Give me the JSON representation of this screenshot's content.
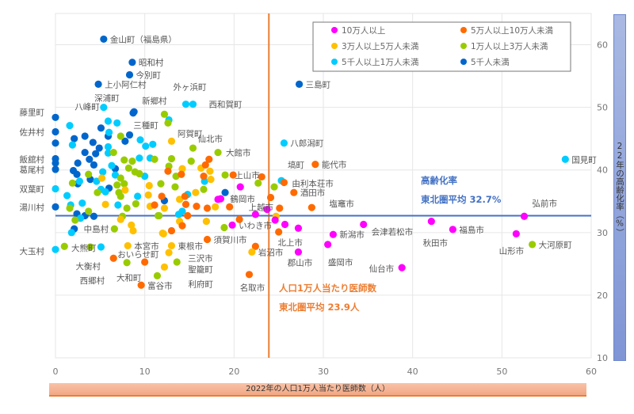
{
  "chart_data": {
    "type": "scatter",
    "xlabel": "2022年の人口1万人当たり医師数（人）",
    "ylabel": "22年の高齢化率（%）",
    "xlim": [
      0,
      60
    ],
    "ylim": [
      10,
      65
    ],
    "x_ticks": [
      "0",
      "10",
      "20",
      "30",
      "40",
      "50",
      "60"
    ],
    "y_ticks": [
      "10",
      "20",
      "30",
      "40",
      "50",
      "60"
    ],
    "grid": true,
    "legend_position": "top-right",
    "categories": [
      {
        "name": "10万人以上",
        "color": "#ff00ff"
      },
      {
        "name": "5万人以上10万人未満",
        "color": "#ff6a00"
      },
      {
        "name": "3万人以上5万人未満",
        "color": "#ffc000"
      },
      {
        "name": "1万人以上3万人未満",
        "color": "#99cc00"
      },
      {
        "name": "5千人以上1万人未満",
        "color": "#00ccff"
      },
      {
        "name": "5千人未満",
        "color": "#0066cc"
      }
    ],
    "reference_lines": {
      "aging_avg": {
        "value": 32.7,
        "axis": "y",
        "color": "#4472c4",
        "label1": "高齢化率",
        "label2": "東北圏平均 32.7%"
      },
      "doctor_avg": {
        "value": 23.9,
        "axis": "x",
        "color": "#ed7d31",
        "label1": "人口1万人当たり医師数",
        "label2": "東北圏平均 23.9人"
      }
    },
    "labeled_points": [
      {
        "name": "金山町（福島県）",
        "x": 5.4,
        "y": 60.9,
        "cat": 5
      },
      {
        "name": "昭和村",
        "x": 8.6,
        "y": 57.2,
        "cat": 5
      },
      {
        "name": "今別町",
        "x": 8.3,
        "y": 55.2,
        "cat": 5
      },
      {
        "name": "上小阿仁村",
        "x": 4.8,
        "y": 53.7,
        "cat": 5
      },
      {
        "name": "三島町",
        "x": 27.3,
        "y": 53.7,
        "cat": 5
      },
      {
        "name": "深浦町",
        "x": 5.4,
        "y": 50.0,
        "cat": 4
      },
      {
        "name": "八峰町",
        "x": 1.6,
        "y": 47.1,
        "cat": 4
      },
      {
        "name": "新郷村",
        "x": 8.8,
        "y": 49.3,
        "cat": 5
      },
      {
        "name": "外ヶ浜町",
        "x": 14.6,
        "y": 50.5,
        "cat": 4
      },
      {
        "name": "西和賀町",
        "x": 15.4,
        "y": 50.5,
        "cat": 4
      },
      {
        "name": "藤里町",
        "x": 0,
        "y": 48.4,
        "cat": 5
      },
      {
        "name": "佐井村",
        "x": 0,
        "y": 46.1,
        "cat": 5
      },
      {
        "name": "飯舘村",
        "x": 0,
        "y": 41.1,
        "cat": 5
      },
      {
        "name": "葛尾村",
        "x": 0,
        "y": 40.1,
        "cat": 5
      },
      {
        "name": "三種町",
        "x": 7.3,
        "y": 45.4,
        "cat": 3
      },
      {
        "name": "阿賀町",
        "x": 12.6,
        "y": 47.5,
        "cat": 3
      },
      {
        "name": "仙北市",
        "x": 15.4,
        "y": 43.5,
        "cat": 3
      },
      {
        "name": "大館市",
        "x": 18.2,
        "y": 42.8,
        "cat": 3
      },
      {
        "name": "上山市",
        "x": 19.9,
        "y": 39.2,
        "cat": 1
      },
      {
        "name": "八郎潟町",
        "x": 25.6,
        "y": 44.3,
        "cat": 4
      },
      {
        "name": "塙町",
        "x": 25.3,
        "y": 38.3,
        "cat": 4
      },
      {
        "name": "能代市",
        "x": 29.1,
        "y": 40.9,
        "cat": 1
      },
      {
        "name": "由利本荘市",
        "x": 25.6,
        "y": 38.0,
        "cat": 1
      },
      {
        "name": "酒田市",
        "x": 26.7,
        "y": 36.4,
        "cat": 1
      },
      {
        "name": "塩竈市",
        "x": 28.7,
        "y": 34.0,
        "cat": 1
      },
      {
        "name": "鶴岡市",
        "x": 18.5,
        "y": 35.4,
        "cat": 0
      },
      {
        "name": "上越市",
        "x": 23.7,
        "y": 33.7,
        "cat": 0
      },
      {
        "name": "いわき市",
        "x": 19.8,
        "y": 31.2,
        "cat": 0
      },
      {
        "name": "須賀川市",
        "x": 17.0,
        "y": 28.9,
        "cat": 1
      },
      {
        "name": "北上市",
        "x": 22.4,
        "y": 27.8,
        "cat": 1
      },
      {
        "name": "岩沼市",
        "x": 22.0,
        "y": 26.9,
        "cat": 2
      },
      {
        "name": "郡山市",
        "x": 27.2,
        "y": 26.9,
        "cat": 0
      },
      {
        "name": "名取市",
        "x": 21.7,
        "y": 23.3,
        "cat": 1
      },
      {
        "name": "新潟市",
        "x": 31.1,
        "y": 29.7,
        "cat": 0
      },
      {
        "name": "会津若松市",
        "x": 34.5,
        "y": 31.3,
        "cat": 0
      },
      {
        "name": "盛岡市",
        "x": 30.5,
        "y": 28.1,
        "cat": 0
      },
      {
        "name": "仙台市",
        "x": 38.8,
        "y": 24.4,
        "cat": 0
      },
      {
        "name": "秋田市",
        "x": 42.1,
        "y": 31.8,
        "cat": 0
      },
      {
        "name": "福島市",
        "x": 44.5,
        "y": 30.5,
        "cat": 0
      },
      {
        "name": "弘前市",
        "x": 52.5,
        "y": 32.6,
        "cat": 0
      },
      {
        "name": "山形市",
        "x": 51.6,
        "y": 29.8,
        "cat": 0
      },
      {
        "name": "大河原町",
        "x": 53.4,
        "y": 28.1,
        "cat": 3
      },
      {
        "name": "国見町",
        "x": 57.1,
        "y": 41.7,
        "cat": 4
      },
      {
        "name": "双葉町",
        "x": 0,
        "y": 37.0,
        "cat": 4
      },
      {
        "name": "湯川村",
        "x": 0,
        "y": 34.1,
        "cat": 5
      },
      {
        "name": "中島村",
        "x": 2.1,
        "y": 30.6,
        "cat": 5
      },
      {
        "name": "大玉村",
        "x": 0,
        "y": 27.3,
        "cat": 4
      },
      {
        "name": "大熊町",
        "x": 5.1,
        "y": 27.7,
        "cat": 4
      },
      {
        "name": "大衡村",
        "x": 1.8,
        "y": 30.0,
        "cat": 4
      },
      {
        "name": "西郷村",
        "x": 8.0,
        "y": 25.2,
        "cat": 3
      },
      {
        "name": "おいらせ町",
        "x": 6.5,
        "y": 25.9,
        "cat": 1
      },
      {
        "name": "本宮市",
        "x": 8.1,
        "y": 27.9,
        "cat": 2
      },
      {
        "name": "大和町",
        "x": 11.4,
        "y": 23.1,
        "cat": 3
      },
      {
        "name": "富谷市",
        "x": 9.6,
        "y": 21.6,
        "cat": 1
      },
      {
        "name": "東根市",
        "x": 13.0,
        "y": 27.9,
        "cat": 2
      },
      {
        "name": "三沢市",
        "x": 12.7,
        "y": 26.8,
        "cat": 2
      },
      {
        "name": "聖籠町",
        "x": 13.6,
        "y": 25.3,
        "cat": 3
      },
      {
        "name": "利府町",
        "x": 12.2,
        "y": 24.5,
        "cat": 2
      }
    ],
    "points": [
      [
        8.7,
        49.1,
        5
      ],
      [
        5.1,
        46.7,
        5
      ],
      [
        3.3,
        45.4,
        5
      ],
      [
        2.1,
        45.0,
        5
      ],
      [
        5.9,
        45.4,
        5
      ],
      [
        8.3,
        45.6,
        5
      ],
      [
        7.8,
        44.6,
        5
      ],
      [
        4.2,
        44.4,
        5
      ],
      [
        3.3,
        42.8,
        5
      ],
      [
        4.5,
        42.6,
        5
      ],
      [
        4.9,
        43.5,
        5
      ],
      [
        3.8,
        41.7,
        5
      ],
      [
        2.5,
        41.1,
        5
      ],
      [
        4.3,
        40.8,
        5
      ],
      [
        2.0,
        39.9,
        5
      ],
      [
        2.4,
        39.3,
        5
      ],
      [
        3.9,
        38.5,
        5
      ],
      [
        2.5,
        37.8,
        5
      ],
      [
        6.0,
        37.1,
        5
      ],
      [
        6.7,
        40.2,
        5
      ],
      [
        12.2,
        35.1,
        5
      ],
      [
        3.3,
        32.7,
        5
      ],
      [
        4.3,
        32.6,
        5
      ],
      [
        2.4,
        33.0,
        5
      ],
      [
        19.0,
        36.4,
        5
      ],
      [
        0,
        44.3,
        5
      ],
      [
        0,
        41.8,
        5
      ],
      [
        5.9,
        47.8,
        4
      ],
      [
        6.9,
        47.5,
        4
      ],
      [
        6.0,
        46.0,
        4
      ],
      [
        1.9,
        44.0,
        4
      ],
      [
        5.9,
        43.7,
        4
      ],
      [
        9.5,
        44.8,
        4
      ],
      [
        10.1,
        43.8,
        4
      ],
      [
        10.9,
        44.1,
        4
      ],
      [
        5.9,
        42.7,
        4
      ],
      [
        9.4,
        41.9,
        4
      ],
      [
        10.6,
        41.9,
        4
      ],
      [
        6.3,
        40.7,
        4
      ],
      [
        5.3,
        39.7,
        4
      ],
      [
        6.7,
        39.2,
        4
      ],
      [
        10.0,
        39.0,
        4
      ],
      [
        4.6,
        38.2,
        4
      ],
      [
        2.7,
        38.2,
        4
      ],
      [
        5.1,
        36.9,
        4
      ],
      [
        5.6,
        36.5,
        4
      ],
      [
        1.3,
        35.9,
        4
      ],
      [
        3.0,
        34.7,
        4
      ],
      [
        7.0,
        34.4,
        4
      ],
      [
        1.7,
        34.4,
        4
      ],
      [
        9.2,
        35.8,
        4
      ],
      [
        2.8,
        32.3,
        4
      ],
      [
        16.7,
        38.2,
        4
      ],
      [
        14.8,
        36.1,
        4
      ],
      [
        14.2,
        33.4,
        4
      ],
      [
        13.8,
        32.9,
        4
      ],
      [
        12.7,
        48.0,
        4
      ],
      [
        11.1,
        41.7,
        3
      ],
      [
        7.7,
        41.6,
        3
      ],
      [
        8.6,
        41.4,
        3
      ],
      [
        6.5,
        42.8,
        3
      ],
      [
        8.2,
        40.3,
        3
      ],
      [
        8.9,
        39.7,
        3
      ],
      [
        9.4,
        39.4,
        3
      ],
      [
        7.3,
        38.7,
        3
      ],
      [
        7.7,
        37.8,
        3
      ],
      [
        6.9,
        37.6,
        3
      ],
      [
        3.7,
        39.3,
        3
      ],
      [
        1.9,
        37.9,
        3
      ],
      [
        4.7,
        36.4,
        3
      ],
      [
        7.1,
        36.4,
        3
      ],
      [
        7.3,
        35.8,
        3
      ],
      [
        9.0,
        34.6,
        3
      ],
      [
        8.0,
        33.9,
        3
      ],
      [
        7.5,
        32.6,
        3
      ],
      [
        11.5,
        32.7,
        3
      ],
      [
        3.7,
        33.4,
        3
      ],
      [
        2.2,
        32.0,
        3
      ],
      [
        1.6,
        33.9,
        3
      ],
      [
        6.6,
        30.6,
        3
      ],
      [
        13.0,
        41.8,
        3
      ],
      [
        15.2,
        41.4,
        3
      ],
      [
        12.7,
        40.6,
        3
      ],
      [
        13.5,
        39.0,
        3
      ],
      [
        11.8,
        37.8,
        3
      ],
      [
        13.4,
        37.3,
        3
      ],
      [
        16.6,
        36.9,
        3
      ],
      [
        19.0,
        39.2,
        3
      ],
      [
        22.7,
        37.9,
        3
      ],
      [
        24.5,
        37.3,
        3
      ],
      [
        11.6,
        32.7,
        3
      ],
      [
        18.9,
        30.8,
        3
      ],
      [
        12.2,
        48.9,
        3
      ],
      [
        3.9,
        27.7,
        3
      ],
      [
        1.0,
        27.8,
        3
      ],
      [
        5.2,
        38.7,
        2
      ],
      [
        7.8,
        36.8,
        2
      ],
      [
        10.5,
        37.5,
        2
      ],
      [
        10.4,
        36.0,
        2
      ],
      [
        5.6,
        34.5,
        2
      ],
      [
        7.3,
        32.1,
        2
      ],
      [
        8.5,
        31.2,
        2
      ],
      [
        8.7,
        30.3,
        2
      ],
      [
        12.0,
        29.9,
        2
      ],
      [
        10.6,
        34.2,
        2
      ],
      [
        13.0,
        44.6,
        2
      ],
      [
        14.2,
        40.2,
        2
      ],
      [
        16.3,
        40.3,
        2
      ],
      [
        17.3,
        39.8,
        2
      ],
      [
        17.4,
        38.5,
        2
      ],
      [
        15.7,
        36.4,
        2
      ],
      [
        13.9,
        35.3,
        2
      ],
      [
        12.2,
        33.9,
        2
      ],
      [
        17.9,
        34.1,
        2
      ],
      [
        16.9,
        31.8,
        2
      ],
      [
        13.9,
        31.8,
        2
      ],
      [
        12.1,
        29.8,
        2
      ],
      [
        24.7,
        32.6,
        2
      ],
      [
        17.2,
        41.7,
        1
      ],
      [
        16.8,
        40.8,
        1
      ],
      [
        16.6,
        39.0,
        1
      ],
      [
        12.6,
        39.8,
        1
      ],
      [
        14.1,
        39.3,
        1
      ],
      [
        11.9,
        35.8,
        1
      ],
      [
        14.5,
        35.8,
        1
      ],
      [
        11.1,
        34.4,
        1
      ],
      [
        14.6,
        34.5,
        1
      ],
      [
        15.8,
        34.2,
        1
      ],
      [
        17.0,
        33.9,
        1
      ],
      [
        14.8,
        32.7,
        1
      ],
      [
        19.5,
        34.1,
        1
      ],
      [
        20.6,
        32.1,
        1
      ],
      [
        14.2,
        31.1,
        1
      ],
      [
        13.0,
        30.3,
        1
      ],
      [
        23.1,
        38.9,
        1
      ],
      [
        24.1,
        35.6,
        1
      ],
      [
        25.0,
        30.1,
        1
      ],
      [
        25.1,
        33.9,
        1
      ],
      [
        10.0,
        25.3,
        1
      ],
      [
        20.7,
        37.3,
        0
      ],
      [
        22.4,
        32.9,
        0
      ],
      [
        24.6,
        32.0,
        0
      ],
      [
        25.7,
        31.3,
        0
      ],
      [
        27.2,
        30.7,
        0
      ],
      [
        18.2,
        35.3,
        0
      ]
    ]
  }
}
